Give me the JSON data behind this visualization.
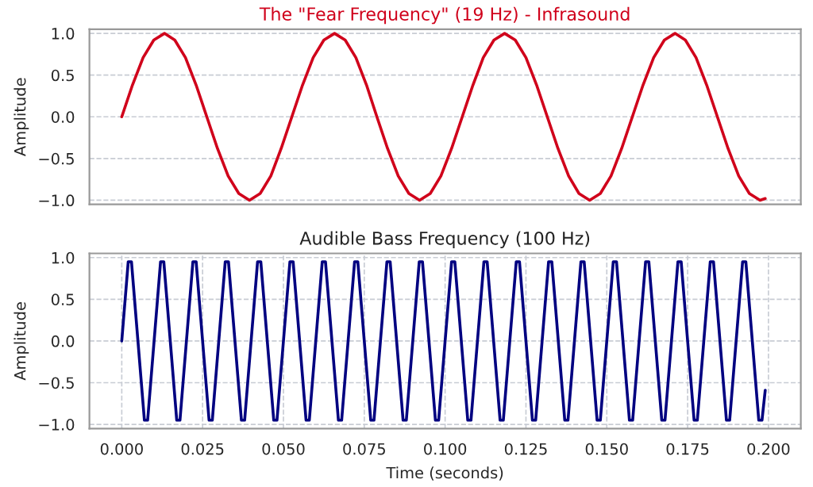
{
  "chart_data": [
    {
      "type": "line",
      "title": "The \"Fear Frequency\" (19 Hz) - Infrasound",
      "ylabel": "Amplitude",
      "xlim": [
        -0.01,
        0.21
      ],
      "ylim": [
        -1.05,
        1.05
      ],
      "yticks": [
        {
          "value": -1.0,
          "label": "−1.0"
        },
        {
          "value": -0.5,
          "label": "−0.5"
        },
        {
          "value": 0.0,
          "label": "0.0"
        },
        {
          "value": 0.5,
          "label": "0.5"
        },
        {
          "value": 1.0,
          "label": "1.0"
        }
      ],
      "tick_labels": "y",
      "grid": "y",
      "line_style": "solid",
      "series": [
        {
          "color": "#d0021b",
          "x": [
            0,
            0.0033,
            0.0066,
            0.0099,
            0.0132,
            0.0164,
            0.0197,
            0.023,
            0.0263,
            0.0296,
            0.0329,
            0.0362,
            0.0395,
            0.0428,
            0.0461,
            0.0493,
            0.0526,
            0.0559,
            0.0592,
            0.0625,
            0.0658,
            0.0691,
            0.0724,
            0.0757,
            0.0789,
            0.0822,
            0.0855,
            0.0888,
            0.0921,
            0.0954,
            0.0987,
            0.102,
            0.1053,
            0.1086,
            0.1118,
            0.1151,
            0.1184,
            0.1217,
            0.125,
            0.1283,
            0.1316,
            0.1349,
            0.1382,
            0.1414,
            0.1447,
            0.148,
            0.1513,
            0.1546,
            0.1579,
            0.1612,
            0.1645,
            0.1678,
            0.1711,
            0.1743,
            0.1776,
            0.1809,
            0.1842,
            0.1875,
            0.1908,
            0.1941,
            0.1974,
            0.199
          ],
          "values": [
            0,
            0.38,
            0.71,
            0.92,
            1,
            0.92,
            0.71,
            0.38,
            0,
            -0.38,
            -0.71,
            -0.92,
            -1,
            -0.92,
            -0.71,
            -0.38,
            0,
            0.38,
            0.71,
            0.92,
            1,
            0.92,
            0.71,
            0.38,
            0,
            -0.38,
            -0.71,
            -0.92,
            -1,
            -0.92,
            -0.71,
            -0.38,
            0,
            0.38,
            0.71,
            0.92,
            1,
            0.92,
            0.71,
            0.38,
            0,
            -0.38,
            -0.71,
            -0.92,
            -1,
            -0.92,
            -0.71,
            -0.38,
            0,
            0.38,
            0.71,
            0.92,
            1,
            0.92,
            0.71,
            0.38,
            0,
            -0.38,
            -0.71,
            -0.92,
            -1,
            -0.98
          ]
        }
      ]
    },
    {
      "type": "line",
      "title": "Audible Bass Frequency (100 Hz)",
      "xlabel": "Time (seconds)",
      "ylabel": "Amplitude",
      "xlim": [
        -0.01,
        0.21
      ],
      "xticks": [
        {
          "value": 0.0,
          "label": "0.000"
        },
        {
          "value": 0.025,
          "label": "0.025"
        },
        {
          "value": 0.05,
          "label": "0.050"
        },
        {
          "value": 0.075,
          "label": "0.075"
        },
        {
          "value": 0.1,
          "label": "0.100"
        },
        {
          "value": 0.125,
          "label": "0.125"
        },
        {
          "value": 0.15,
          "label": "0.150"
        },
        {
          "value": 0.175,
          "label": "0.175"
        },
        {
          "value": 0.2,
          "label": "0.200"
        }
      ],
      "ylim": [
        -1.05,
        1.05
      ],
      "yticks": [
        {
          "value": -1.0,
          "label": "−1.0"
        },
        {
          "value": -0.5,
          "label": "−0.5"
        },
        {
          "value": 0.0,
          "label": "0.0"
        },
        {
          "value": 0.5,
          "label": "0.5"
        },
        {
          "value": 1.0,
          "label": "1.0"
        }
      ],
      "grid": true,
      "line_style": "solid",
      "series": [
        {
          "color": "#000080",
          "x": [
            0,
            0.002,
            0.003,
            0.007,
            0.008,
            0.012,
            0.013,
            0.017,
            0.018,
            0.022,
            0.023,
            0.027,
            0.028,
            0.032,
            0.033,
            0.037,
            0.038,
            0.042,
            0.043,
            0.047,
            0.048,
            0.052,
            0.053,
            0.057,
            0.058,
            0.062,
            0.063,
            0.067,
            0.068,
            0.072,
            0.073,
            0.077,
            0.078,
            0.082,
            0.083,
            0.087,
            0.088,
            0.092,
            0.093,
            0.097,
            0.098,
            0.102,
            0.103,
            0.107,
            0.108,
            0.112,
            0.113,
            0.117,
            0.118,
            0.122,
            0.123,
            0.127,
            0.128,
            0.132,
            0.133,
            0.137,
            0.138,
            0.142,
            0.143,
            0.147,
            0.148,
            0.152,
            0.153,
            0.157,
            0.158,
            0.162,
            0.163,
            0.167,
            0.168,
            0.172,
            0.173,
            0.177,
            0.178,
            0.182,
            0.183,
            0.187,
            0.188,
            0.192,
            0.193,
            0.197,
            0.198,
            0.199
          ],
          "values": [
            0,
            0.95,
            0.95,
            -0.95,
            -0.95,
            0.95,
            0.95,
            -0.95,
            -0.95,
            0.95,
            0.95,
            -0.95,
            -0.95,
            0.95,
            0.95,
            -0.95,
            -0.95,
            0.95,
            0.95,
            -0.95,
            -0.95,
            0.95,
            0.95,
            -0.95,
            -0.95,
            0.95,
            0.95,
            -0.95,
            -0.95,
            0.95,
            0.95,
            -0.95,
            -0.95,
            0.95,
            0.95,
            -0.95,
            -0.95,
            0.95,
            0.95,
            -0.95,
            -0.95,
            0.95,
            0.95,
            -0.95,
            -0.95,
            0.95,
            0.95,
            -0.95,
            -0.95,
            0.95,
            0.95,
            -0.95,
            -0.95,
            0.95,
            0.95,
            -0.95,
            -0.95,
            0.95,
            0.95,
            -0.95,
            -0.95,
            0.95,
            0.95,
            -0.95,
            -0.95,
            0.95,
            0.95,
            -0.95,
            -0.95,
            0.95,
            0.95,
            -0.95,
            -0.95,
            0.95,
            0.95,
            -0.95,
            -0.95,
            0.95,
            0.95,
            -0.95,
            -0.95,
            -0.59
          ]
        }
      ]
    }
  ]
}
